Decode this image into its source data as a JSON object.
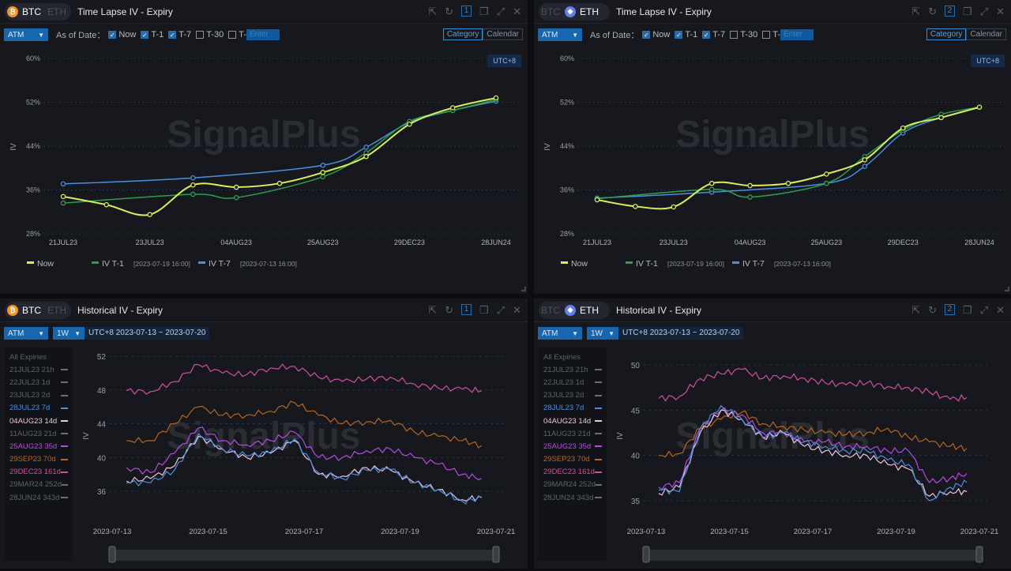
{
  "colors": {
    "now": "#d8ef5a",
    "t1": "#2f9d4c",
    "t7": "#4a8fe0",
    "accent": "#1766b0"
  },
  "panels": [
    {
      "id": "btc-timelapse",
      "type": "timelapse",
      "coin_active": "BTC",
      "coin_inactive": "ETH",
      "coin_color": "#f7931a",
      "coin_glyph": "₿",
      "title": "Time Lapse IV - Expiry",
      "window_num": "1",
      "toolbar": {
        "dropdown": "ATM",
        "as_of": "As of Date：",
        "checks": [
          {
            "label": "Now",
            "checked": true
          },
          {
            "label": "T-1",
            "checked": true
          },
          {
            "label": "T-7",
            "checked": true
          },
          {
            "label": "T-30",
            "checked": false
          },
          {
            "label": "T-",
            "checked": false
          }
        ],
        "enter_placeholder": "Enter",
        "seg": [
          "Category",
          "Calendar"
        ],
        "seg_active": 0
      },
      "utc": "UTC+8",
      "watermark": "SignalPlus"
    },
    {
      "id": "eth-timelapse",
      "type": "timelapse",
      "coin_active": "ETH",
      "coin_inactive": "BTC",
      "coin_color": "#627eea",
      "coin_glyph": "◆",
      "title": "Time Lapse IV - Expiry",
      "window_num": "2",
      "toolbar": {
        "dropdown": "ATM",
        "as_of": "As of Date：",
        "checks": [
          {
            "label": "Now",
            "checked": true
          },
          {
            "label": "T-1",
            "checked": true
          },
          {
            "label": "T-7",
            "checked": true
          },
          {
            "label": "T-30",
            "checked": false
          },
          {
            "label": "T-",
            "checked": false
          }
        ],
        "enter_placeholder": "Enter",
        "seg": [
          "Category",
          "Calendar"
        ],
        "seg_active": 0
      },
      "utc": "UTC+8",
      "watermark": "SignalPlus"
    },
    {
      "id": "btc-historical",
      "type": "historical",
      "coin_active": "BTC",
      "coin_inactive": "ETH",
      "coin_color": "#f7931a",
      "coin_glyph": "₿",
      "title": "Historical IV - Expiry",
      "window_num": "1",
      "toolbar": {
        "dropdown": "ATM",
        "period": "1W",
        "range": "UTC+8 2023-07-13 ~ 2023-07-20"
      },
      "watermark": "SignalPlus"
    },
    {
      "id": "eth-historical",
      "type": "historical",
      "coin_active": "ETH",
      "coin_inactive": "BTC",
      "coin_color": "#627eea",
      "coin_glyph": "◆",
      "title": "Historical IV - Expiry",
      "window_num": "2",
      "toolbar": {
        "dropdown": "ATM",
        "period": "1W",
        "range": "UTC+8 2023-07-13 ~ 2023-07-20"
      },
      "watermark": "SignalPlus"
    }
  ],
  "expiry_legend": {
    "header": "All Expiries",
    "items": [
      {
        "label": "21JUL23 21h",
        "color": "#6b6f78",
        "active": false
      },
      {
        "label": "22JUL23 1d",
        "color": "#6b6f78",
        "active": false
      },
      {
        "label": "23JUL23 2d",
        "color": "#6b6f78",
        "active": false
      },
      {
        "label": "28JUL23 7d",
        "color": "#4a8fe0",
        "active": true
      },
      {
        "label": "04AUG23 14d",
        "color": "#f2c4dc",
        "active": true
      },
      {
        "label": "11AUG23 21d",
        "color": "#6b6f78",
        "active": false
      },
      {
        "label": "25AUG23 35d",
        "color": "#b54be0",
        "active": true
      },
      {
        "label": "29SEP23 70d",
        "color": "#b8651c",
        "active": true
      },
      {
        "label": "29DEC23 161d",
        "color": "#d0509e",
        "active": true
      },
      {
        "label": "29MAR24 252d",
        "color": "#6b6f78",
        "active": false
      },
      {
        "label": "28JUN24 343d",
        "color": "#6b6f78",
        "active": false
      }
    ]
  },
  "chart_data": [
    {
      "type": "line",
      "panel": "btc-timelapse",
      "ylabel": "IV",
      "ylim": [
        28,
        60
      ],
      "yticks": [
        "28%",
        "36%",
        "44%",
        "52%",
        "60%"
      ],
      "ytick_values": [
        28,
        36,
        44,
        52,
        60
      ],
      "tick_labels": [
        "21JUL23",
        "23JUL23",
        "04AUG23",
        "25AUG23",
        "29DEC23",
        "28JUN24"
      ],
      "n_points": 11,
      "legend": [
        {
          "name": "Now",
          "sub": ""
        },
        {
          "name": "IV T-1",
          "sub": "[2023-07-19 16:00]"
        },
        {
          "name": "IV T-7",
          "sub": "[2023-07-13 16:00]"
        }
      ],
      "series": [
        {
          "key": "now",
          "values": [
            34.8,
            33.3,
            31.5,
            36.9,
            36.5,
            37.2,
            39.2,
            42.1,
            48.0,
            51.0,
            52.8
          ]
        },
        {
          "key": "t1",
          "values": [
            33.6,
            null,
            null,
            35.2,
            34.6,
            null,
            38.4,
            42.8,
            48.5,
            50.5,
            52.5
          ]
        },
        {
          "key": "t7",
          "values": [
            37.1,
            null,
            null,
            38.2,
            null,
            null,
            40.5,
            43.8,
            48.3,
            50.5,
            52.2
          ]
        }
      ]
    },
    {
      "type": "line",
      "panel": "eth-timelapse",
      "ylabel": "IV",
      "ylim": [
        28,
        60
      ],
      "yticks": [
        "28%",
        "36%",
        "44%",
        "52%",
        "60%"
      ],
      "ytick_values": [
        28,
        36,
        44,
        52,
        60
      ],
      "tick_labels": [
        "21JUL23",
        "23JUL23",
        "04AUG23",
        "25AUG23",
        "29DEC23",
        "28JUN24"
      ],
      "n_points": 11,
      "legend": [
        {
          "name": "Now",
          "sub": ""
        },
        {
          "name": "IV T-1",
          "sub": "[2023-07-19 16:00]"
        },
        {
          "name": "IV T-7",
          "sub": "[2023-07-13 16:00]"
        }
      ],
      "series": [
        {
          "key": "now",
          "values": [
            34.2,
            33.0,
            32.9,
            37.2,
            36.8,
            37.2,
            38.9,
            41.5,
            47.3,
            49.2,
            51.1
          ]
        },
        {
          "key": "t1",
          "values": [
            34.4,
            null,
            null,
            36.1,
            34.7,
            null,
            37.2,
            42.1,
            46.9,
            49.8,
            51.1
          ]
        },
        {
          "key": "t7",
          "values": [
            34.5,
            null,
            null,
            35.6,
            null,
            null,
            37.2,
            40.3,
            46.4,
            49.2,
            51.1
          ]
        }
      ]
    },
    {
      "type": "line",
      "panel": "btc-historical",
      "ylabel": "IV",
      "ylim": [
        35,
        53
      ],
      "yticks": [
        "36",
        "40",
        "44",
        "48",
        "52"
      ],
      "ytick_values": [
        36,
        40,
        44,
        48,
        52
      ],
      "xlim_days": [
        0,
        8
      ],
      "xticks": [
        "2023-07-13",
        "2023-07-15",
        "2023-07-17",
        "2023-07-19",
        "2023-07-21"
      ],
      "x_days": [
        0.3,
        0.8,
        1.3,
        1.8,
        2.3,
        2.8,
        3.3,
        3.8,
        4.3,
        4.8,
        5.3,
        5.8,
        6.3,
        6.8,
        7.3,
        7.7
      ],
      "series": [
        {
          "name": "29DEC23",
          "color": "#d0509e",
          "values": [
            47.9,
            47.8,
            49,
            51,
            50,
            49.8,
            50.6,
            50.8,
            49.5,
            49,
            49.3,
            49.5,
            48.7,
            48.2,
            48.1,
            47.9
          ]
        },
        {
          "name": "29SEP23",
          "color": "#b8651c",
          "values": [
            42,
            42,
            44,
            46,
            45,
            45,
            45.5,
            46.5,
            45,
            44,
            44.2,
            44.4,
            43,
            42.5,
            42,
            41.4
          ]
        },
        {
          "name": "25AUG23",
          "color": "#b54be0",
          "values": [
            38.8,
            38.2,
            40.5,
            43.5,
            42,
            41.5,
            42,
            43,
            40,
            40,
            40.8,
            41,
            40,
            39.2,
            38,
            37.5
          ]
        },
        {
          "name": "04AUG23",
          "color": "#f2c4dc",
          "values": [
            37.2,
            37.5,
            39,
            42.5,
            41,
            40,
            40.5,
            42,
            38,
            37.8,
            38.8,
            38.5,
            37,
            36.2,
            35,
            35.3
          ]
        },
        {
          "name": "28JUL23",
          "color": "#4a8fe0",
          "values": [
            37,
            37,
            38.5,
            42.8,
            41,
            40.2,
            40.6,
            42.2,
            38.2,
            37.5,
            38.5,
            38.6,
            37,
            36.2,
            34.8,
            35.2
          ]
        }
      ]
    },
    {
      "type": "line",
      "panel": "eth-historical",
      "ylabel": "IV",
      "ylim": [
        34,
        51
      ],
      "yticks": [
        "35",
        "40",
        "45",
        "50"
      ],
      "ytick_values": [
        35,
        40,
        45,
        50
      ],
      "xlim_days": [
        0,
        8
      ],
      "xticks": [
        "2023-07-13",
        "2023-07-15",
        "2023-07-17",
        "2023-07-19",
        "2023-07-21"
      ],
      "x_days": [
        0.3,
        0.8,
        1.3,
        1.8,
        2.3,
        2.8,
        3.3,
        3.8,
        4.3,
        4.8,
        5.3,
        5.8,
        6.3,
        6.8,
        7.3,
        7.7
      ],
      "series": [
        {
          "name": "29DEC23",
          "color": "#d0509e",
          "values": [
            46.3,
            46.5,
            48.5,
            49,
            49.5,
            48.5,
            48.8,
            48.5,
            48,
            47.8,
            48,
            47.6,
            47.5,
            47,
            46.2,
            46.4
          ]
        },
        {
          "name": "29SEP23",
          "color": "#b8651c",
          "values": [
            40,
            40.2,
            43,
            44,
            44.8,
            43.5,
            43.2,
            42.8,
            42.5,
            42.3,
            42.5,
            43,
            42,
            41.5,
            41,
            40.8
          ]
        },
        {
          "name": "25AUG23",
          "color": "#b54be0",
          "values": [
            36.5,
            37,
            43,
            45,
            44.5,
            42.5,
            42.5,
            41.5,
            41.5,
            41,
            41,
            40.5,
            40.5,
            37,
            37.5,
            38
          ]
        },
        {
          "name": "04AUG23",
          "color": "#f2c4dc",
          "values": [
            35.8,
            36.5,
            42.5,
            45,
            44,
            42,
            42.5,
            41,
            40.5,
            40,
            40,
            39,
            38.5,
            35.5,
            36,
            36
          ]
        },
        {
          "name": "28JUL23",
          "color": "#4a8fe0",
          "values": [
            36.2,
            36,
            43,
            45.5,
            44,
            42,
            42.5,
            41.5,
            41,
            40.5,
            40.5,
            39.5,
            39,
            35,
            36.5,
            37
          ]
        }
      ]
    }
  ]
}
